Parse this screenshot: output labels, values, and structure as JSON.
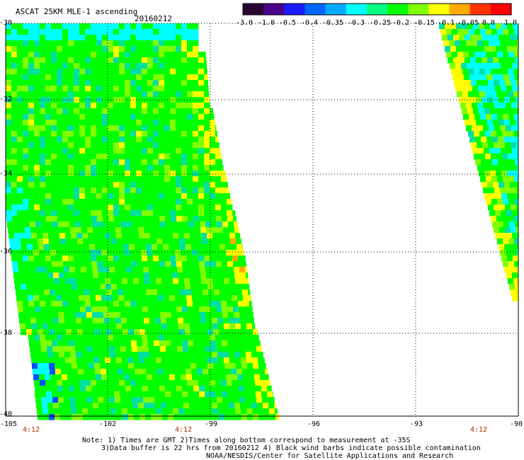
{
  "title": "ASCAT 25KM MLE-1 ascending",
  "date": "20160212",
  "colorbar": {
    "colors": [
      "#2a0033",
      "#4a008a",
      "#1a1aff",
      "#0066ff",
      "#00aaff",
      "#00ffff",
      "#00ff80",
      "#00ff00",
      "#80ff00",
      "#ffff00",
      "#ffaa00",
      "#ff3300",
      "#ff0000"
    ],
    "labels": [
      "-3.0",
      "-1.0",
      "-0.5",
      "-0.4",
      "-0.35",
      "-0.3",
      "-0.25",
      "-0.2",
      "-0.15",
      "-0.1",
      "-0.05",
      "0.0",
      "1.0"
    ]
  },
  "axes": {
    "y_labels": [
      "-30",
      "-32",
      "-34",
      "-36",
      "-38",
      "-40"
    ],
    "x_labels": [
      "-105",
      "-102",
      "-99",
      "-96",
      "-93",
      "-90"
    ],
    "x_range": [
      -105,
      -90
    ],
    "y_range": [
      -30,
      -40
    ]
  },
  "pass_times": [
    "4:12",
    "4:12",
    "4:12"
  ],
  "notes": {
    "line1": "Note: 1) Times are GMT 2)Times along bottom correspond to measurement at -35S",
    "line2": "3)Data buffer is 22 hrs from 20160212 4) Black wind barbs indicate possible contamination",
    "line3": "NOAA/NESDIS/Center for Satellite Applications and Research"
  },
  "swath_palette": {
    "green": "#00ff00",
    "lime": "#7fff00",
    "yellow": "#ffff00",
    "orange": "#ffaa00",
    "cyan": "#00ffff",
    "aqua": "#00e0a0",
    "blue": "#0050ff"
  }
}
